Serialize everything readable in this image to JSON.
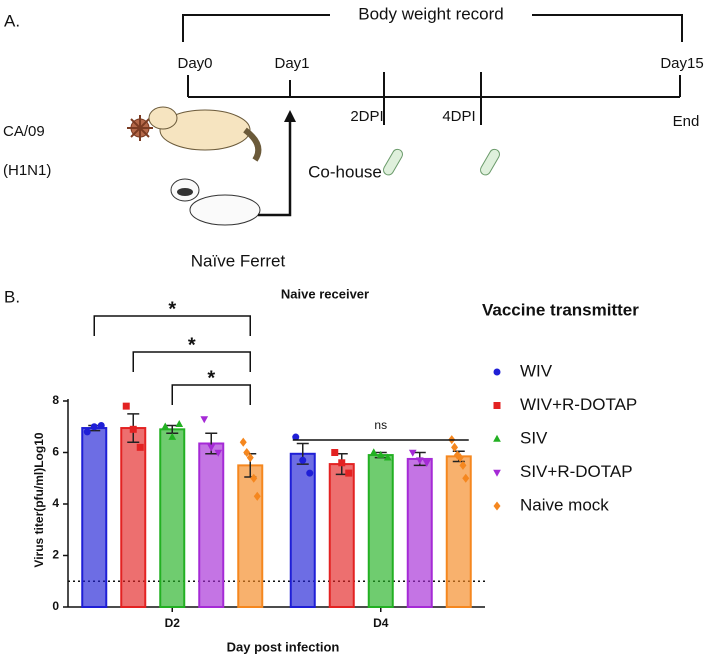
{
  "panel_a": {
    "label": "A.",
    "bracket_label": "Body weight record",
    "timeline": [
      "Day0",
      "Day1",
      "Day15"
    ],
    "samples": [
      "2DPI",
      "4DPI"
    ],
    "end": "End",
    "virus": [
      "CA/09",
      "(H1N1)"
    ],
    "cohouse": "Co-house",
    "naive": "Naïve Ferret"
  },
  "chart_data": {
    "type": "bar",
    "panel_label": "B.",
    "title": "Naive receiver",
    "x_label": "Day post infection",
    "y_label": "Virus titer(pfu/ml)Log10",
    "legend_title": "Vaccine transmitter",
    "categories": [
      "D2",
      "D4"
    ],
    "ylim": [
      0,
      8
    ],
    "yticks": [
      0,
      2,
      4,
      6,
      8
    ],
    "reference_line": 1,
    "series": [
      {
        "name": "WIV",
        "color": "#1f1fd6",
        "marker": "circle",
        "values": [
          6.95,
          5.95
        ],
        "errors": [
          0.1,
          0.4
        ],
        "points": [
          [
            6.8,
            7.0,
            7.05
          ],
          [
            6.6,
            5.7,
            5.2
          ]
        ]
      },
      {
        "name": "WIV+R-DOTAP",
        "color": "#e32222",
        "marker": "square",
        "values": [
          6.95,
          5.55
        ],
        "errors": [
          0.55,
          0.4
        ],
        "points": [
          [
            7.8,
            6.9,
            6.2
          ],
          [
            6.0,
            5.6,
            5.2
          ]
        ]
      },
      {
        "name": "SIV",
        "color": "#22b022",
        "marker": "triangle-up",
        "values": [
          6.9,
          5.9
        ],
        "errors": [
          0.15,
          0.1
        ],
        "points": [
          [
            7.0,
            6.6,
            7.1
          ],
          [
            6.0,
            5.9,
            5.8
          ]
        ]
      },
      {
        "name": "SIV+R-DOTAP",
        "color": "#a52ad6",
        "marker": "triangle-down",
        "values": [
          6.35,
          5.75
        ],
        "errors": [
          0.4,
          0.25
        ],
        "points": [
          [
            7.3,
            6.2,
            6.0
          ],
          [
            6.0,
            5.7,
            5.6
          ]
        ]
      },
      {
        "name": "Naive mock",
        "color": "#f5871f",
        "marker": "diamond",
        "values": [
          5.5,
          5.85
        ],
        "errors": [
          0.45,
          0.2
        ],
        "points": [
          [
            6.4,
            6.0,
            5.8,
            5.0,
            4.3
          ],
          [
            6.5,
            6.2,
            5.9,
            5.8,
            5.5,
            5.0
          ]
        ]
      }
    ],
    "annotations": [
      {
        "label": "*",
        "category": 0,
        "from": 0,
        "to": 4
      },
      {
        "label": "*",
        "category": 0,
        "from": 1,
        "to": 4
      },
      {
        "label": "*",
        "category": 0,
        "from": 2,
        "to": 4
      },
      {
        "label": "ns",
        "category": 1,
        "from": 0,
        "to": 4
      }
    ]
  }
}
